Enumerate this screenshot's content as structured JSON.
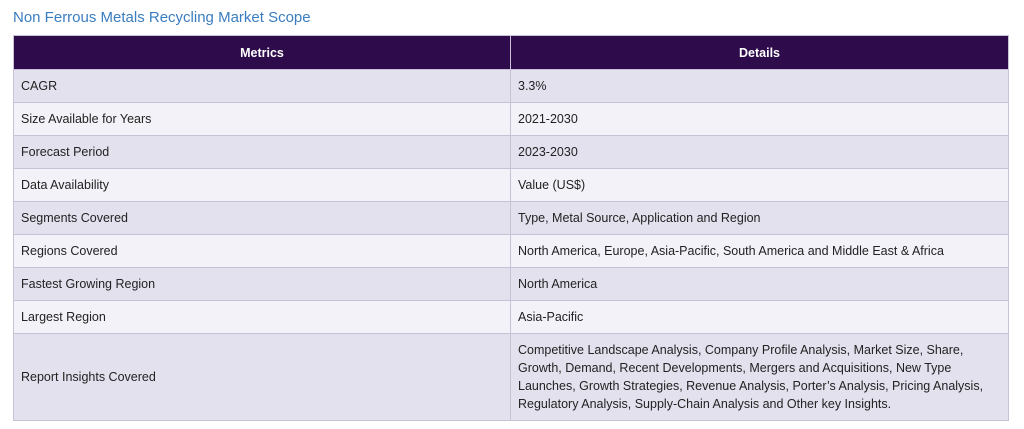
{
  "title": "Non Ferrous Metals Recycling Market Scope",
  "table": {
    "headers": [
      "Metrics",
      "Details"
    ],
    "rows": [
      {
        "metric": "CAGR",
        "detail": "3.3%"
      },
      {
        "metric": "Size Available for Years",
        "detail": "2021-2030"
      },
      {
        "metric": "Forecast Period",
        "detail": "2023-2030"
      },
      {
        "metric": "Data Availability",
        "detail": "Value (US$)"
      },
      {
        "metric": "Segments Covered",
        "detail": "Type, Metal Source, Application and Region"
      },
      {
        "metric": "Regions Covered",
        "detail": "North America, Europe, Asia-Pacific, South America and Middle East & Africa"
      },
      {
        "metric": "Fastest Growing Region",
        "detail": "North America"
      },
      {
        "metric": "Largest Region",
        "detail": "Asia-Pacific"
      },
      {
        "metric": "Report Insights Covered",
        "detail": "Competitive Landscape Analysis, Company Profile Analysis, Market Size, Share, Growth, Demand, Recent Developments, Mergers and Acquisitions, New Type Launches, Growth Strategies, Revenue Analysis, Porter’s Analysis, Pricing Analysis, Regulatory Analysis, Supply-Chain Analysis and Other key Insights."
      }
    ]
  },
  "colors": {
    "title": "#3a7dc0",
    "header_bg": "#2e0c4b",
    "row_odd": "#e4e1ee",
    "row_even": "#f3f2f8",
    "border": "#c9c2d6"
  }
}
